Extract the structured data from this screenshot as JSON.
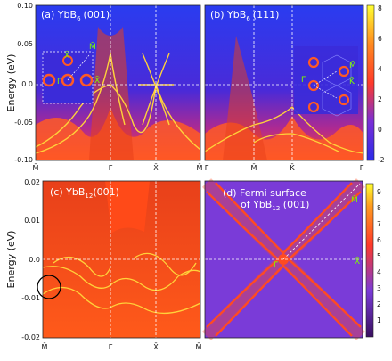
{
  "panels": {
    "a": {
      "label": "(a) YbB",
      "sub": "6",
      "orient": "(001)",
      "xticks": [
        "M̄",
        "Γ̄",
        "X̄",
        "M̄"
      ],
      "inset_points": {
        "gamma": "Γ̄",
        "x": "X̄",
        "m": "M̄"
      }
    },
    "b": {
      "label": "(b) YbB",
      "sub": "6",
      "orient": "(111)",
      "xticks": [
        "Γ̄",
        "M̄",
        "K̄",
        "Γ̄"
      ],
      "inset_points": {
        "gamma": "Γ̄",
        "m": "M̄",
        "k": "K̄"
      }
    },
    "c": {
      "label": "(c) YbB",
      "sub": "12",
      "orient": "(001)",
      "xticks": [
        "M̄",
        "Γ̄",
        "X̄",
        "M̄"
      ]
    },
    "d": {
      "label_line1": "(d) Fermi surface",
      "label_line2": "of YbB",
      "sub": "12",
      "orient": " (001)",
      "points": {
        "gamma": "Γ̄",
        "x": "X̄",
        "m": "M̄"
      }
    }
  },
  "top_axis": {
    "ylabel": "Energy (eV)",
    "yticks": [
      "0.10",
      "0.05",
      "0.0",
      "-0.05",
      "-0.10"
    ]
  },
  "bottom_axis": {
    "ylabel": "Energy (eV)",
    "yticks": [
      "0.02",
      "0.01",
      "0.0",
      "-0.01",
      "-0.02"
    ]
  },
  "colorbar_top": {
    "ticks": [
      "8",
      "6",
      "4",
      "2",
      "0",
      "-2"
    ]
  },
  "colorbar_bottom": {
    "ticks": [
      "9",
      "8",
      "7",
      "6",
      "5",
      "4",
      "3",
      "2",
      "1"
    ]
  },
  "colors": {
    "background": "#3b2bd9",
    "band": "#ffd23a",
    "bulk": "#ff3a1a",
    "fermi_bg": "#7a3bd8",
    "highlight": "#7CFC00"
  }
}
